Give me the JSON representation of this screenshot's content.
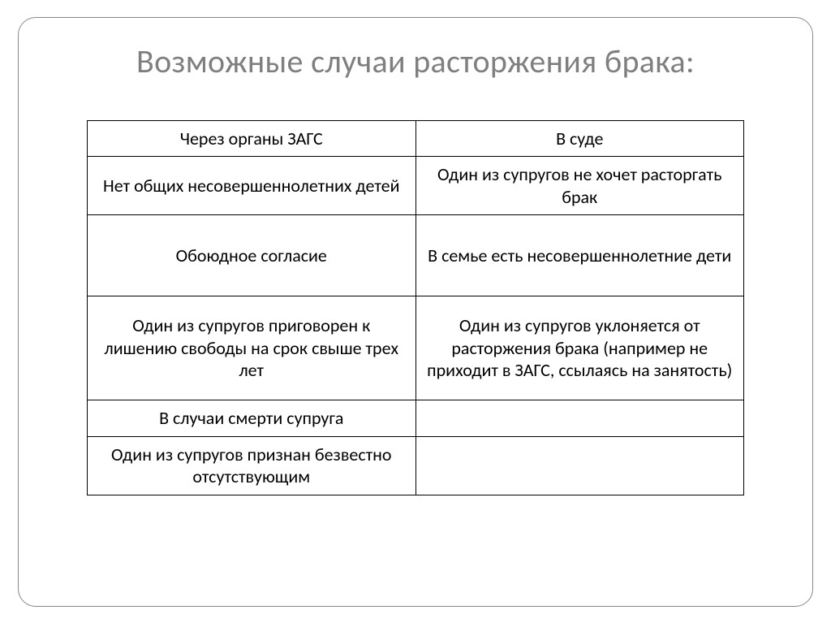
{
  "title": "Возможные случаи расторжения брака:",
  "table": {
    "columns": [
      "Через органы ЗАГС",
      "В суде"
    ],
    "column_widths": [
      "50%",
      "50%"
    ],
    "rows": [
      [
        "Нет общих несовершеннолетних детей",
        "Один из супругов не хочет расторгать брак"
      ],
      [
        "Обоюдное согласие",
        "В семье есть несовершеннолетние дети"
      ],
      [
        "Один из супругов приговорен к лишению свободы на срок свыше трех лет",
        "Один из супругов уклоняется от расторжения брака (например не приходит в ЗАГС, ссылаясь на занятость)"
      ],
      [
        "В случаи смерти супруга",
        ""
      ],
      [
        "Один из супругов признан безвестно отсутствующим",
        ""
      ]
    ],
    "border_color": "#000000",
    "text_color": "#000000",
    "font_size": 22
  },
  "title_color": "#7f7f7f",
  "title_fontsize": 40,
  "frame_border_color": "#888888",
  "frame_border_radius": 22,
  "background_color": "#ffffff"
}
